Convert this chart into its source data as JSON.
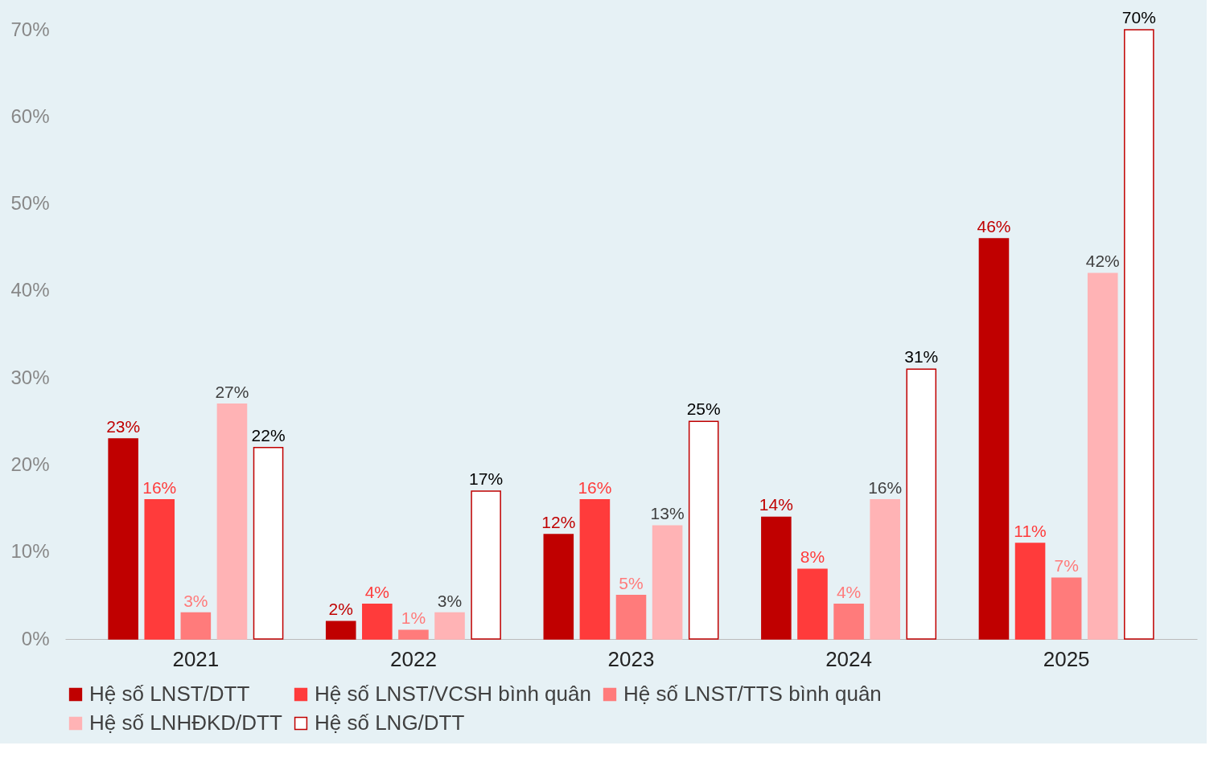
{
  "chart_data": {
    "type": "bar",
    "categories": [
      "2021",
      "2022",
      "2023",
      "2024",
      "2025"
    ],
    "series": [
      {
        "name": "Hệ số LNST/DTT",
        "color": "#c00000",
        "values": [
          23,
          2,
          12,
          14,
          46
        ],
        "value_labels": [
          "23%",
          "2%",
          "12%",
          "14%",
          "46%"
        ]
      },
      {
        "name": "Hệ số LNST/VCSH bình quân",
        "color": "#ff3b3b",
        "values": [
          16,
          4,
          16,
          8,
          11
        ],
        "value_labels": [
          "16%",
          "4%",
          "16%",
          "8%",
          "11%"
        ]
      },
      {
        "name": "Hệ số LNST/TTS bình quân",
        "color": "#ff7b7b",
        "values": [
          3,
          1,
          5,
          4,
          7
        ],
        "value_labels": [
          "3%",
          "1%",
          "5%",
          "4%",
          "7%"
        ]
      },
      {
        "name": "Hệ số LNHĐKD/DTT",
        "color": "#ffb3b5",
        "values": [
          27,
          3,
          13,
          16,
          42
        ],
        "value_labels": [
          "27%",
          "3%",
          "13%",
          "16%",
          "42%"
        ]
      },
      {
        "name": "Hệ số LNG/DTT",
        "color": "#ffffff",
        "values": [
          22,
          17,
          25,
          31,
          70
        ],
        "value_labels": [
          "22%",
          "17%",
          "25%",
          "31%",
          "70%"
        ]
      }
    ],
    "ylim": [
      0,
      70
    ],
    "yticks": [
      {
        "value": 0,
        "label": "0%"
      },
      {
        "value": 10,
        "label": "10%"
      },
      {
        "value": 20,
        "label": "20%"
      },
      {
        "value": 30,
        "label": "30%"
      },
      {
        "value": 40,
        "label": "40%"
      },
      {
        "value": 50,
        "label": "50%"
      },
      {
        "value": 60,
        "label": "60%"
      },
      {
        "value": 70,
        "label": "70%"
      }
    ],
    "grid": false,
    "legend": "bottom"
  }
}
